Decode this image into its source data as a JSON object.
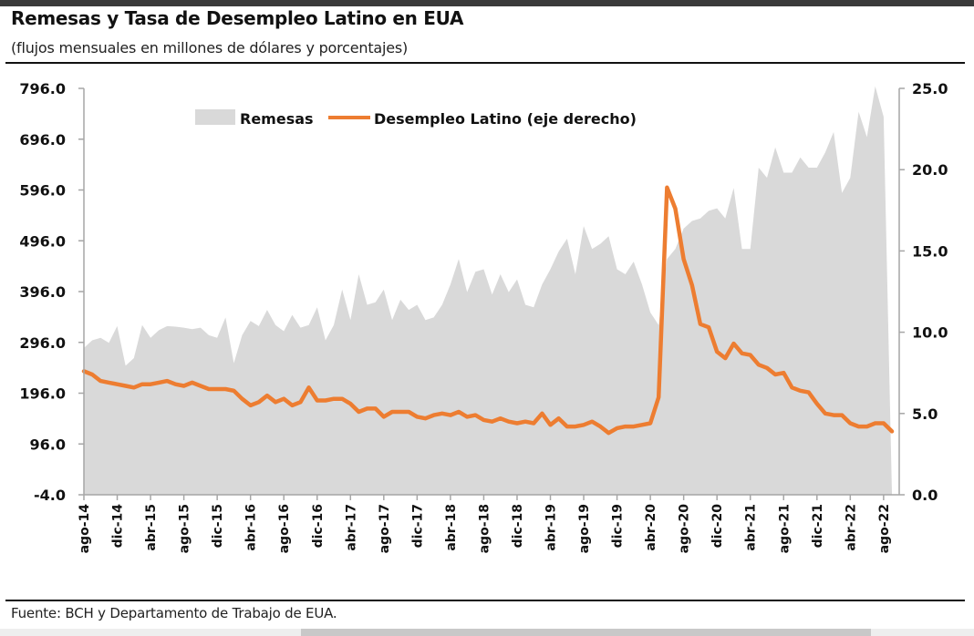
{
  "header": {
    "title": "Remesas y Tasa de Desempleo Latino en EUA",
    "subtitle": "(flujos mensuales en millones de dólares y porcentajes)"
  },
  "footer": {
    "source": "Fuente: BCH y Departamento de Trabajo de EUA."
  },
  "chart_data": {
    "type": "area+line",
    "title": "Remesas y Tasa de Desempleo Latino en EUA",
    "subtitle": "(flujos mensuales en millones de dólares y porcentajes)",
    "x_start": "ago-14",
    "x_end": "ago-22",
    "frequency": "monthly",
    "x_tick_labels": [
      "ago-14",
      "dic-14",
      "abr-15",
      "ago-15",
      "dic-15",
      "abr-16",
      "ago-16",
      "dic-16",
      "abr-17",
      "ago-17",
      "dic-17",
      "abr-18",
      "ago-18",
      "dic-18",
      "abr-19",
      "ago-19",
      "dic-19",
      "abr-20",
      "ago-20",
      "dic-20",
      "abr-21",
      "ago-21",
      "dic-21",
      "abr-22",
      "ago-22"
    ],
    "y_left": {
      "label": "",
      "ylim": [
        -4,
        796
      ],
      "ticks": [
        "796.0",
        "696.0",
        "596.0",
        "496.0",
        "396.0",
        "296.0",
        "196.0",
        "96.0",
        "-4.0"
      ]
    },
    "y_right": {
      "label": "",
      "ylim": [
        0,
        25
      ],
      "ticks": [
        "25.0",
        "20.0",
        "15.0",
        "10.0",
        "5.0",
        "0.0"
      ]
    },
    "legend": {
      "position": "top-center",
      "entries": [
        "Remesas",
        "Desempleo Latino (eje derecho)"
      ]
    },
    "colors": {
      "remesas": "#d9d9d9",
      "desempleo": "#ed7d31"
    },
    "grid": false,
    "series": [
      {
        "name": "Remesas",
        "axis": "left",
        "kind": "area",
        "values": [
          285,
          300,
          305,
          295,
          328,
          250,
          265,
          330,
          305,
          320,
          328,
          327,
          325,
          322,
          325,
          310,
          305,
          345,
          255,
          310,
          338,
          328,
          360,
          330,
          318,
          350,
          325,
          330,
          365,
          300,
          330,
          400,
          340,
          430,
          370,
          375,
          400,
          340,
          380,
          360,
          370,
          340,
          345,
          370,
          410,
          460,
          395,
          435,
          440,
          390,
          430,
          395,
          420,
          370,
          365,
          410,
          440,
          475,
          500,
          430,
          525,
          480,
          490,
          505,
          440,
          430,
          455,
          410,
          355,
          330,
          460,
          480,
          520,
          535,
          540,
          555,
          560,
          540,
          600,
          480,
          480,
          640,
          620,
          680,
          630,
          630,
          660,
          640,
          640,
          670,
          710,
          590,
          620,
          750,
          700,
          800,
          740,
          0
        ]
      },
      {
        "name": "Desempleo Latino (eje derecho)",
        "axis": "right",
        "kind": "line",
        "values": [
          7.6,
          7.4,
          7.0,
          6.9,
          6.8,
          6.7,
          6.6,
          6.8,
          6.8,
          6.9,
          7.0,
          6.8,
          6.7,
          6.9,
          6.7,
          6.5,
          6.5,
          6.5,
          6.4,
          5.9,
          5.5,
          5.7,
          6.1,
          5.7,
          5.9,
          5.5,
          5.7,
          6.6,
          5.8,
          5.8,
          5.9,
          5.9,
          5.6,
          5.1,
          5.3,
          5.3,
          4.8,
          5.1,
          5.1,
          5.1,
          4.8,
          4.7,
          4.9,
          5.0,
          4.9,
          5.1,
          4.8,
          4.9,
          4.6,
          4.5,
          4.7,
          4.5,
          4.4,
          4.5,
          4.4,
          5.0,
          4.3,
          4.7,
          4.2,
          4.2,
          4.3,
          4.5,
          4.2,
          3.8,
          4.1,
          4.2,
          4.2,
          4.3,
          4.4,
          6.0,
          18.9,
          17.6,
          14.5,
          12.9,
          10.5,
          10.3,
          8.8,
          8.4,
          9.3,
          8.7,
          8.6,
          8.0,
          7.8,
          7.4,
          7.5,
          6.6,
          6.4,
          6.3,
          5.6,
          5.0,
          4.9,
          4.9,
          4.4,
          4.2,
          4.2,
          4.4,
          4.4,
          3.9
        ]
      }
    ]
  }
}
